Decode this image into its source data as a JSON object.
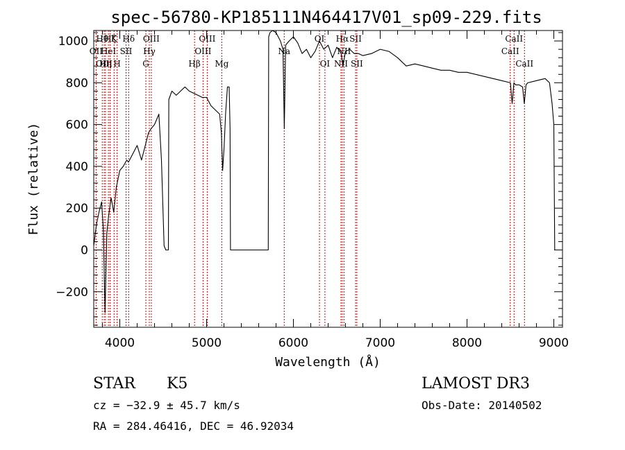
{
  "chart_data": {
    "type": "line",
    "title": "spec-56780-KP185111N464417V01_sp09-229.fits",
    "xlabel": "Wavelength (Å)",
    "ylabel": "Flux (relative)",
    "xlim": [
      3700,
      9100
    ],
    "ylim": [
      -370,
      1050
    ],
    "grid": false,
    "x_ticks": [
      4000,
      5000,
      6000,
      7000,
      8000,
      9000
    ],
    "x_tick_labels": [
      "4000",
      "5000",
      "6000",
      "7000",
      "8000",
      "9000"
    ],
    "y_ticks": [
      -200,
      0,
      200,
      400,
      600,
      800,
      1000
    ],
    "y_tick_labels": [
      "−200",
      "0",
      "200",
      "400",
      "600",
      "800",
      "1000"
    ],
    "line_color": "#000000",
    "marker_color": "#cc0000",
    "series": [
      {
        "x": [
          3700,
          3730,
          3760,
          3790,
          3810,
          3830,
          3850,
          3870,
          3900,
          3930,
          3960,
          4000,
          4040,
          4080,
          4100,
          4150,
          4200,
          4250,
          4300,
          4330,
          4360,
          4400,
          4450,
          4480,
          4510,
          4530,
          4535,
          4550,
          4560,
          4565,
          4600,
          4650,
          4700,
          4750,
          4800,
          4850,
          4900,
          4950,
          5000,
          5050,
          5100,
          5150,
          5170,
          5185,
          5200,
          5220,
          5240,
          5260,
          5270,
          5275,
          5300,
          5400,
          5500,
          5600,
          5700,
          5710,
          5715,
          5730,
          5760,
          5800,
          5850,
          5880,
          5895,
          5900,
          5910,
          5950,
          6000,
          6050,
          6100,
          6150,
          6200,
          6250,
          6300,
          6350,
          6400,
          6450,
          6500,
          6550,
          6570,
          6600,
          6650,
          6700,
          6750,
          6800,
          6900,
          7000,
          7100,
          7200,
          7300,
          7400,
          7500,
          7600,
          7700,
          7800,
          7900,
          8000,
          8100,
          8200,
          8300,
          8400,
          8500,
          8520,
          8540,
          8560,
          8600,
          8640,
          8660,
          8680,
          8700,
          8800,
          8900,
          8950,
          8980,
          9000,
          9010
        ],
        "y": [
          20,
          120,
          180,
          230,
          100,
          -300,
          80,
          160,
          250,
          180,
          300,
          380,
          400,
          430,
          420,
          460,
          500,
          430,
          510,
          560,
          580,
          600,
          650,
          430,
          20,
          0,
          0,
          0,
          0,
          720,
          760,
          740,
          760,
          780,
          760,
          750,
          740,
          730,
          730,
          690,
          670,
          650,
          560,
          380,
          480,
          660,
          780,
          780,
          580,
          0,
          0,
          0,
          0,
          0,
          0,
          0,
          1020,
          1040,
          1050,
          1040,
          1000,
          960,
          580,
          700,
          980,
          1000,
          1020,
          990,
          940,
          960,
          920,
          950,
          1000,
          960,
          980,
          920,
          970,
          940,
          880,
          950,
          960,
          940,
          940,
          930,
          940,
          960,
          950,
          920,
          880,
          890,
          880,
          870,
          860,
          860,
          850,
          850,
          840,
          830,
          820,
          810,
          800,
          700,
          800,
          790,
          790,
          780,
          700,
          790,
          800,
          810,
          820,
          800,
          700,
          600,
          0
        ]
      }
    ],
    "line_markers": [
      {
        "x": 3727,
        "label": "OII",
        "row": 1
      },
      {
        "x": 3798,
        "label": "Hθ",
        "row": 0
      },
      {
        "x": 3820,
        "label": "OIII",
        "row": 2
      },
      {
        "x": 3835,
        "label": "Hη",
        "row": 2
      },
      {
        "x": 3869,
        "label": "HeI",
        "row": 1
      },
      {
        "x": 3889,
        "label": "Hζ",
        "row": 0
      },
      {
        "x": 3934,
        "label": "K",
        "row": 0
      },
      {
        "x": 3969,
        "label": "H",
        "row": 2
      },
      {
        "x": 4072,
        "label": "SII",
        "row": 1
      },
      {
        "x": 4102,
        "label": "Hδ",
        "row": 0
      },
      {
        "x": 4300,
        "label": "G",
        "row": 2
      },
      {
        "x": 4340,
        "label": "Hγ",
        "row": 1
      },
      {
        "x": 4363,
        "label": "OIII",
        "row": 0
      },
      {
        "x": 4861,
        "label": "Hβ",
        "row": 2
      },
      {
        "x": 4959,
        "label": "OIII",
        "row": 1
      },
      {
        "x": 5007,
        "label": "OIII",
        "row": 0
      },
      {
        "x": 5175,
        "label": "Mg",
        "row": 2
      },
      {
        "x": 5894,
        "label": "Na",
        "row": 1
      },
      {
        "x": 6300,
        "label": "OI",
        "row": 0
      },
      {
        "x": 6363,
        "label": "OI",
        "row": 2
      },
      {
        "x": 6548,
        "label": "NII",
        "row": 2
      },
      {
        "x": 6563,
        "label": "Hα",
        "row": 0
      },
      {
        "x": 6583,
        "label": "NII",
        "row": 1
      },
      {
        "x": 6716,
        "label": "SII",
        "row": 0
      },
      {
        "x": 6731,
        "label": "SII",
        "row": 2
      },
      {
        "x": 8498,
        "label": "CaII",
        "row": 1
      },
      {
        "x": 8542,
        "label": "CaII",
        "row": 0
      },
      {
        "x": 8662,
        "label": "CaII",
        "row": 2
      }
    ]
  },
  "info": {
    "class": "STAR",
    "subclass": "K5",
    "survey": "LAMOST DR3",
    "redshift": "cz = −32.9 ± 45.7 km/s",
    "obs_date": "Obs-Date: 20140502",
    "coords": "RA = 284.46416, DEC =  46.92034"
  }
}
